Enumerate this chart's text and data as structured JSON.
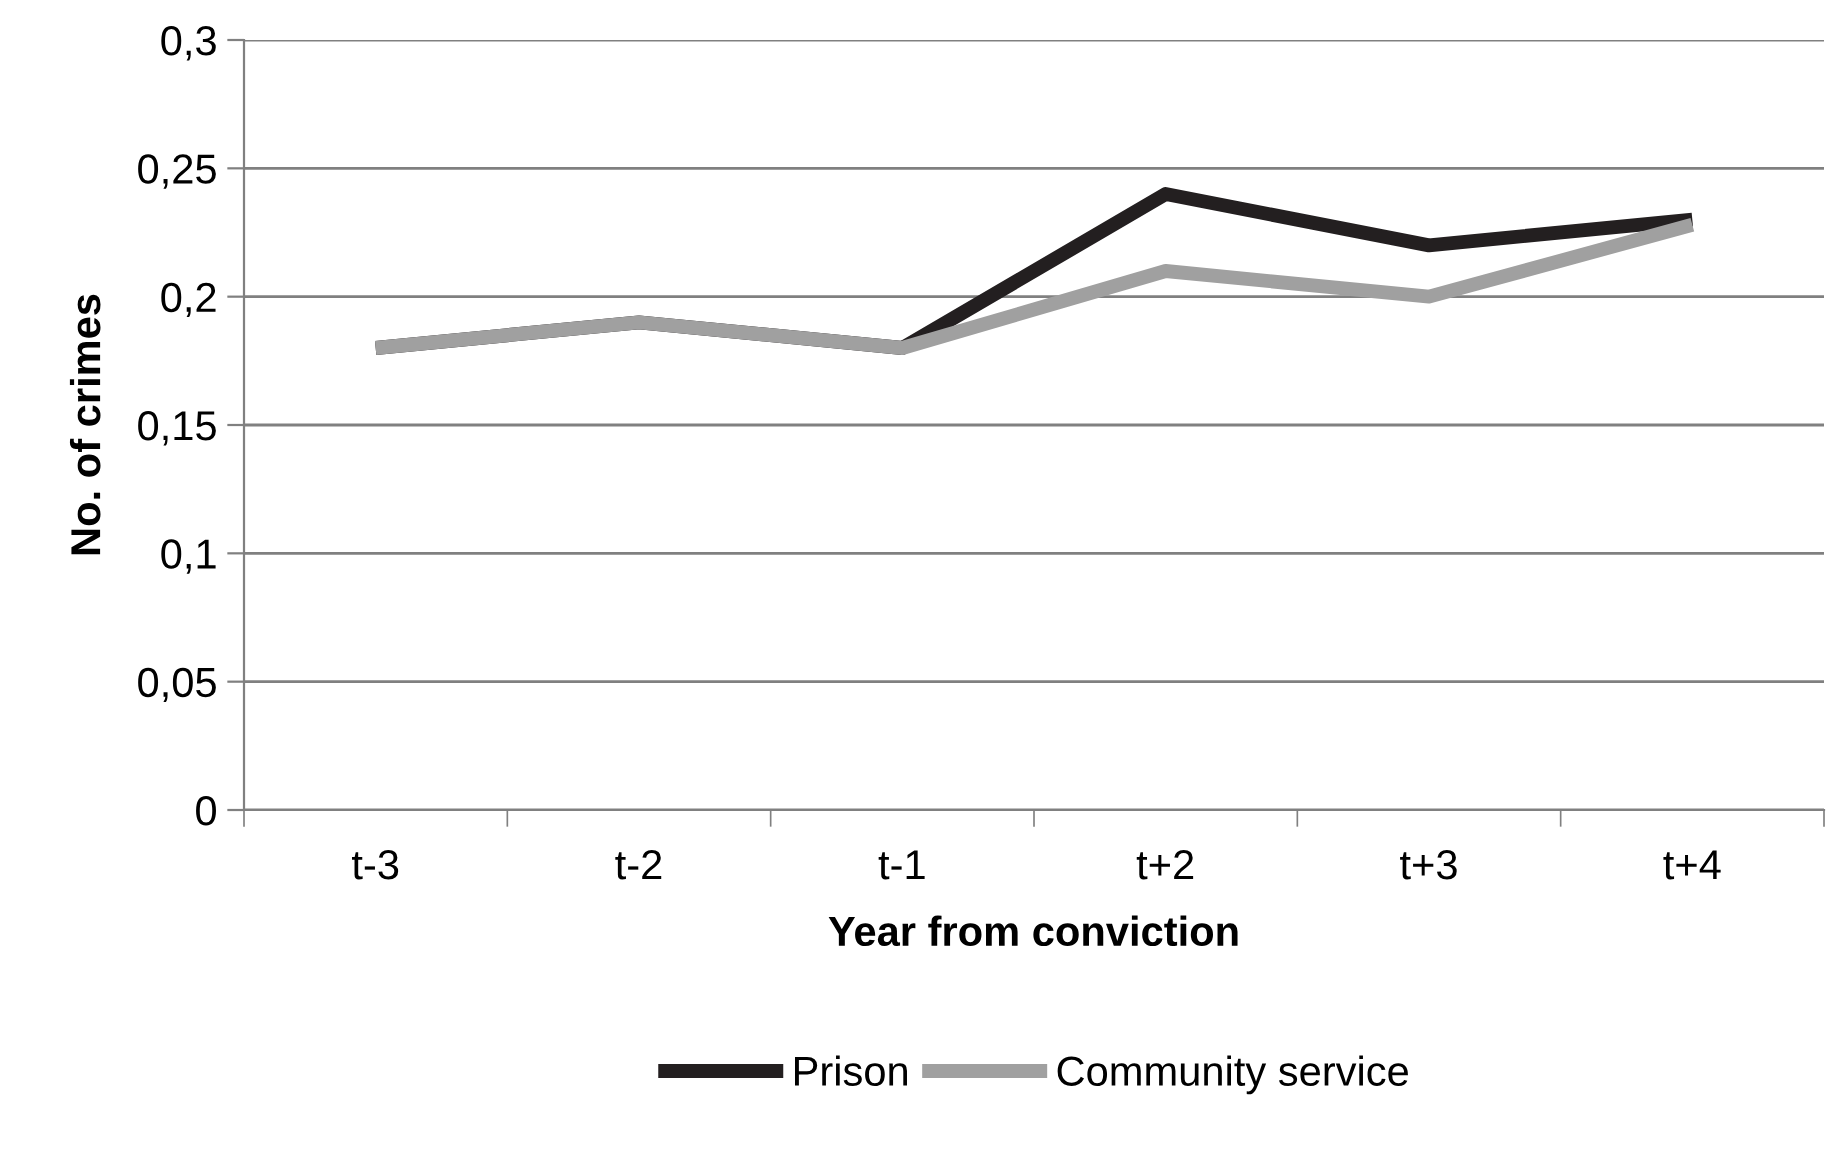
{
  "chart_data": {
    "type": "line",
    "xlabel": "Year from conviction",
    "ylabel": "No. of crimes",
    "categories": [
      "t-3",
      "t-2",
      "t-1",
      "t+2",
      "t+3",
      "t+4"
    ],
    "series": [
      {
        "name": "Prison",
        "color": "#231f20",
        "values": [
          0.18,
          0.19,
          0.18,
          0.24,
          0.22,
          0.23
        ]
      },
      {
        "name": "Community service",
        "color": "#a0a0a0",
        "values": [
          0.18,
          0.19,
          0.18,
          0.21,
          0.2,
          0.228
        ]
      }
    ],
    "ylim": [
      0,
      0.3
    ],
    "yticks": [
      {
        "value": 0,
        "label": "0"
      },
      {
        "value": 0.05,
        "label": "0,05"
      },
      {
        "value": 0.1,
        "label": "0,1"
      },
      {
        "value": 0.15,
        "label": "0,15"
      },
      {
        "value": 0.2,
        "label": "0,2"
      },
      {
        "value": 0.25,
        "label": "0,25"
      },
      {
        "value": 0.3,
        "label": "0,3"
      }
    ],
    "grid": "y",
    "legend": "bottom",
    "marker": "none",
    "line_style": "solid"
  }
}
